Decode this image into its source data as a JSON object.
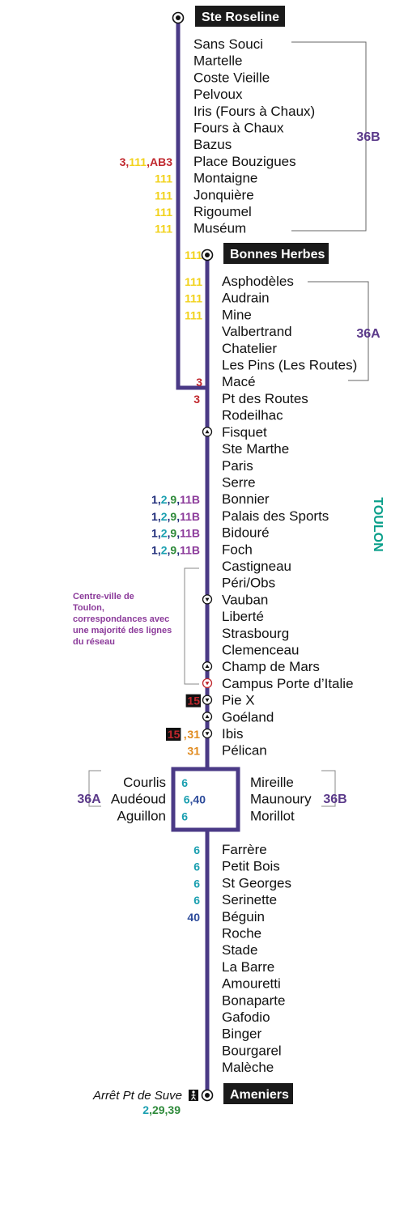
{
  "colors": {
    "route": "#4a3a86",
    "branch_label": "#5b3a8a",
    "city_label": "#0a9f8a",
    "note": "#8b3a9a",
    "terminus_bg": "#1a1a1a",
    "line_1": "#1f2d7a",
    "line_2": "#1a9fb0",
    "line_3": "#c0272d",
    "line_6": "#1a9fb0",
    "line_9": "#2e8a3a",
    "line_11B": "#8b3a9a",
    "line_111": "#f2d21b",
    "line_AB3": "#c0272d",
    "line_15": "#c0272d",
    "line_31": "#e08a1e",
    "line_29": "#2e8a3a",
    "line_39": "#2e8a3a",
    "line_40": "#2c4a9a"
  },
  "branch_36B": {
    "terminus": "Ste Roseline",
    "stops": [
      "Sans Souci",
      "Martelle",
      "Coste Vieille",
      "Pelvoux",
      "Iris (Fours à Chaux)",
      "Fours à Chaux",
      "Bazus",
      "Place Bouzigues",
      "Montaigne",
      "Jonquière",
      "Rigoumel",
      "Muséum"
    ],
    "connections": {
      "Place Bouzigues": [
        {
          "t": "3",
          "c": "line_3"
        },
        {
          "t": ",",
          "c": "line_3"
        },
        {
          "t": "111",
          "c": "line_111"
        },
        {
          "t": ",",
          "c": "line_3"
        },
        {
          "t": "AB3",
          "c": "line_AB3"
        }
      ],
      "Montaigne": [
        {
          "t": "111",
          "c": "line_111"
        }
      ],
      "Jonquière": [
        {
          "t": "111",
          "c": "line_111"
        }
      ],
      "Rigoumel": [
        {
          "t": "111",
          "c": "line_111"
        }
      ],
      "Muséum": [
        {
          "t": "111",
          "c": "line_111"
        }
      ]
    },
    "label": "36B"
  },
  "branch_36A": {
    "terminus": "Bonnes Herbes",
    "terminus_connections": [
      {
        "t": "111",
        "c": "line_111"
      }
    ],
    "stops": [
      "Asphodèles",
      "Audrain",
      "Mine",
      "Valbertrand",
      "Chatelier",
      "Les Pins (Les Routes)",
      "Macé"
    ],
    "connections": {
      "Asphodèles": [
        {
          "t": "111",
          "c": "line_111"
        }
      ],
      "Audrain": [
        {
          "t": "111",
          "c": "line_111"
        }
      ],
      "Mine": [
        {
          "t": "111",
          "c": "line_111"
        }
      ],
      "Macé": [
        {
          "t": "3",
          "c": "line_3"
        }
      ]
    },
    "label": "36A"
  },
  "trunk": {
    "stops": [
      {
        "name": "Pt des Routes",
        "conn": [
          {
            "t": "3",
            "c": "line_3"
          }
        ]
      },
      {
        "name": "Rodeilhac",
        "conn": []
      },
      {
        "name": "Fisquet",
        "conn": [],
        "marker": "up"
      },
      {
        "name": "Ste Marthe",
        "conn": []
      },
      {
        "name": "Paris",
        "conn": []
      },
      {
        "name": "Serre",
        "conn": []
      },
      {
        "name": "Bonnier",
        "conn": [
          {
            "t": "1",
            "c": "line_1"
          },
          {
            "t": ",",
            "c": "line_1"
          },
          {
            "t": "2",
            "c": "line_2"
          },
          {
            "t": ",",
            "c": "line_1"
          },
          {
            "t": "9",
            "c": "line_9"
          },
          {
            "t": ",",
            "c": "line_1"
          },
          {
            "t": "11B",
            "c": "line_11B"
          }
        ]
      },
      {
        "name": "Palais des Sports",
        "conn": [
          {
            "t": "1",
            "c": "line_1"
          },
          {
            "t": ",",
            "c": "line_1"
          },
          {
            "t": "2",
            "c": "line_2"
          },
          {
            "t": ",",
            "c": "line_1"
          },
          {
            "t": "9",
            "c": "line_9"
          },
          {
            "t": ",",
            "c": "line_1"
          },
          {
            "t": "11B",
            "c": "line_11B"
          }
        ]
      },
      {
        "name": "Bidouré",
        "conn": [
          {
            "t": "1",
            "c": "line_1"
          },
          {
            "t": ",",
            "c": "line_1"
          },
          {
            "t": "2",
            "c": "line_2"
          },
          {
            "t": ",",
            "c": "line_1"
          },
          {
            "t": "9",
            "c": "line_9"
          },
          {
            "t": ",",
            "c": "line_1"
          },
          {
            "t": "11B",
            "c": "line_11B"
          }
        ]
      },
      {
        "name": "Foch",
        "conn": [
          {
            "t": "1",
            "c": "line_1"
          },
          {
            "t": ",",
            "c": "line_1"
          },
          {
            "t": "2",
            "c": "line_2"
          },
          {
            "t": ",",
            "c": "line_1"
          },
          {
            "t": "9",
            "c": "line_9"
          },
          {
            "t": ",",
            "c": "line_1"
          },
          {
            "t": "11B",
            "c": "line_11B"
          }
        ]
      },
      {
        "name": "Castigneau",
        "conn": []
      },
      {
        "name": "Péri/Obs",
        "conn": []
      },
      {
        "name": "Vauban",
        "conn": [],
        "marker": "down"
      },
      {
        "name": "Liberté",
        "conn": []
      },
      {
        "name": "Strasbourg",
        "conn": []
      },
      {
        "name": "Clemenceau",
        "conn": []
      },
      {
        "name": "Champ de Mars",
        "conn": [],
        "marker": "up"
      },
      {
        "name": "Campus Porte d’Italie",
        "conn": [],
        "marker": "down-red"
      },
      {
        "name": "Pie X",
        "conn": [
          {
            "t": "15",
            "c": "line_15",
            "box": true
          }
        ],
        "marker": "down"
      },
      {
        "name": "Goéland",
        "conn": [],
        "marker": "up"
      },
      {
        "name": "Ibis",
        "conn": [
          {
            "t": "15",
            "c": "line_15",
            "box": true
          },
          {
            "t": ",",
            "c": "line_31"
          },
          {
            "t": "31",
            "c": "line_31"
          }
        ],
        "marker": "down"
      },
      {
        "name": "Pélican",
        "conn": [
          {
            "t": "31",
            "c": "line_31"
          }
        ]
      }
    ],
    "city_label": "TOULON",
    "note": [
      "Centre-ville de",
      "Toulon,",
      "correspondances avec",
      "une majorité des lignes",
      "du réseau"
    ]
  },
  "loop": {
    "left_label": "36A",
    "right_label": "36B",
    "left": [
      {
        "name": "Courlis",
        "conn": [
          {
            "t": "6",
            "c": "line_6"
          }
        ]
      },
      {
        "name": "Audéoud",
        "conn": [
          {
            "t": "6",
            "c": "line_6"
          },
          {
            "t": ",",
            "c": "line_40"
          },
          {
            "t": "40",
            "c": "line_40"
          }
        ]
      },
      {
        "name": "Aguillon",
        "conn": [
          {
            "t": "6",
            "c": "line_6"
          }
        ]
      }
    ],
    "right": [
      "Mireille",
      "Maunoury",
      "Morillot"
    ]
  },
  "south": {
    "stops": [
      {
        "name": "Farrère",
        "conn": [
          {
            "t": "6",
            "c": "line_6"
          }
        ]
      },
      {
        "name": "Petit Bois",
        "conn": [
          {
            "t": "6",
            "c": "line_6"
          }
        ]
      },
      {
        "name": "St Georges",
        "conn": [
          {
            "t": "6",
            "c": "line_6"
          }
        ]
      },
      {
        "name": "Serinette",
        "conn": [
          {
            "t": "6",
            "c": "line_6"
          }
        ]
      },
      {
        "name": "Béguin",
        "conn": [
          {
            "t": "40",
            "c": "line_40"
          }
        ]
      },
      {
        "name": "Roche",
        "conn": []
      },
      {
        "name": "Stade",
        "conn": []
      },
      {
        "name": "La Barre",
        "conn": []
      },
      {
        "name": "Amouretti",
        "conn": []
      },
      {
        "name": "Bonaparte",
        "conn": []
      },
      {
        "name": "Gafodio",
        "conn": []
      },
      {
        "name": "Binger",
        "conn": []
      },
      {
        "name": "Bourgarel",
        "conn": []
      },
      {
        "name": "Malèche",
        "conn": []
      }
    ],
    "terminus": "Ameniers",
    "walk_stop": "Arrêt Pt de Suve",
    "walk_connections": [
      {
        "t": "2",
        "c": "line_2"
      },
      {
        "t": ",",
        "c": "line_9"
      },
      {
        "t": "29",
        "c": "line_29"
      },
      {
        "t": ",",
        "c": "line_9"
      },
      {
        "t": "39",
        "c": "line_39"
      }
    ]
  }
}
